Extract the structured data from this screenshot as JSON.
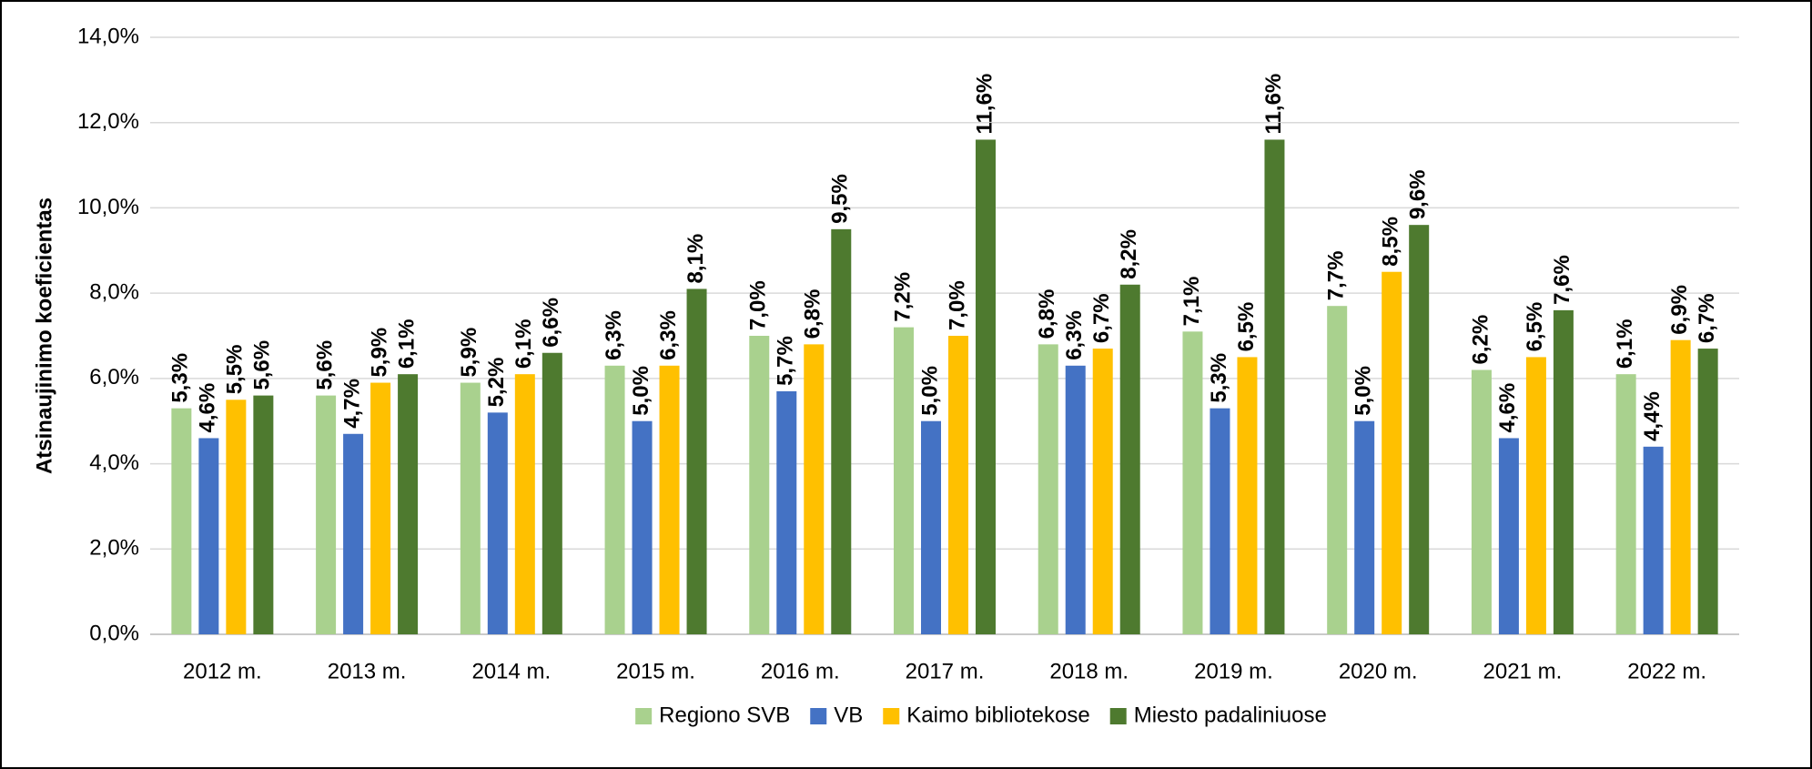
{
  "chart_data": {
    "type": "bar",
    "ylabel": "Atsinaujinimo koeficientas",
    "categories": [
      "2012 m.",
      "2013 m.",
      "2014 m.",
      "2015 m.",
      "2016 m.",
      "2017 m.",
      "2018 m.",
      "2019 m.",
      "2020 m.",
      "2021 m.",
      "2022 m."
    ],
    "series": [
      {
        "name": "Regiono SVB",
        "color": "#a9d18e",
        "values": [
          5.3,
          5.6,
          5.9,
          6.3,
          7.0,
          7.2,
          6.8,
          7.1,
          7.7,
          6.2,
          6.1
        ],
        "value_labels": [
          "5,3%",
          "5,6%",
          "5,9%",
          "6,3%",
          "7,0%",
          "7,2%",
          "6,8%",
          "7,1%",
          "7,7%",
          "6,2%",
          "6,1%"
        ]
      },
      {
        "name": "VB",
        "color": "#4472c4",
        "values": [
          4.6,
          4.7,
          5.2,
          5.0,
          5.7,
          5.0,
          6.3,
          5.3,
          5.0,
          4.6,
          4.4
        ],
        "value_labels": [
          "4,6%",
          "4,7%",
          "5,2%",
          "5,0%",
          "5,7%",
          "5,0%",
          "6,3%",
          "5,3%",
          "5,0%",
          "4,6%",
          "4,4%"
        ]
      },
      {
        "name": "Kaimo bibliotekose",
        "color": "#ffc000",
        "values": [
          5.5,
          5.9,
          6.1,
          6.3,
          6.8,
          7.0,
          6.7,
          6.5,
          8.5,
          6.5,
          6.9
        ],
        "value_labels": [
          "5,5%",
          "5,9%",
          "6,1%",
          "6,3%",
          "6,8%",
          "7,0%",
          "6,7%",
          "6,5%",
          "8,5%",
          "6,5%",
          "6,9%"
        ]
      },
      {
        "name": "Miesto padaliniuose",
        "color": "#4e7a2f",
        "values": [
          5.6,
          6.1,
          6.6,
          8.1,
          9.5,
          11.6,
          8.2,
          11.6,
          9.6,
          7.6,
          6.7
        ],
        "value_labels": [
          "5,6%",
          "6,1%",
          "6,6%",
          "8,1%",
          "9,5%",
          "11,6%",
          "8,2%",
          "11,6%",
          "9,6%",
          "7,6%",
          "6,7%"
        ]
      }
    ],
    "ylim": [
      0,
      14
    ],
    "yticks": [
      {
        "value": 0,
        "label": "0,0%"
      },
      {
        "value": 2,
        "label": "2,0%"
      },
      {
        "value": 4,
        "label": "4,0%"
      },
      {
        "value": 6,
        "label": "6,0%"
      },
      {
        "value": 8,
        "label": "8,0%"
      },
      {
        "value": 10,
        "label": "10,0%"
      },
      {
        "value": 12,
        "label": "12,0%"
      },
      {
        "value": 14,
        "label": "14,0%"
      }
    ],
    "grid": true,
    "legend": "bottom"
  }
}
